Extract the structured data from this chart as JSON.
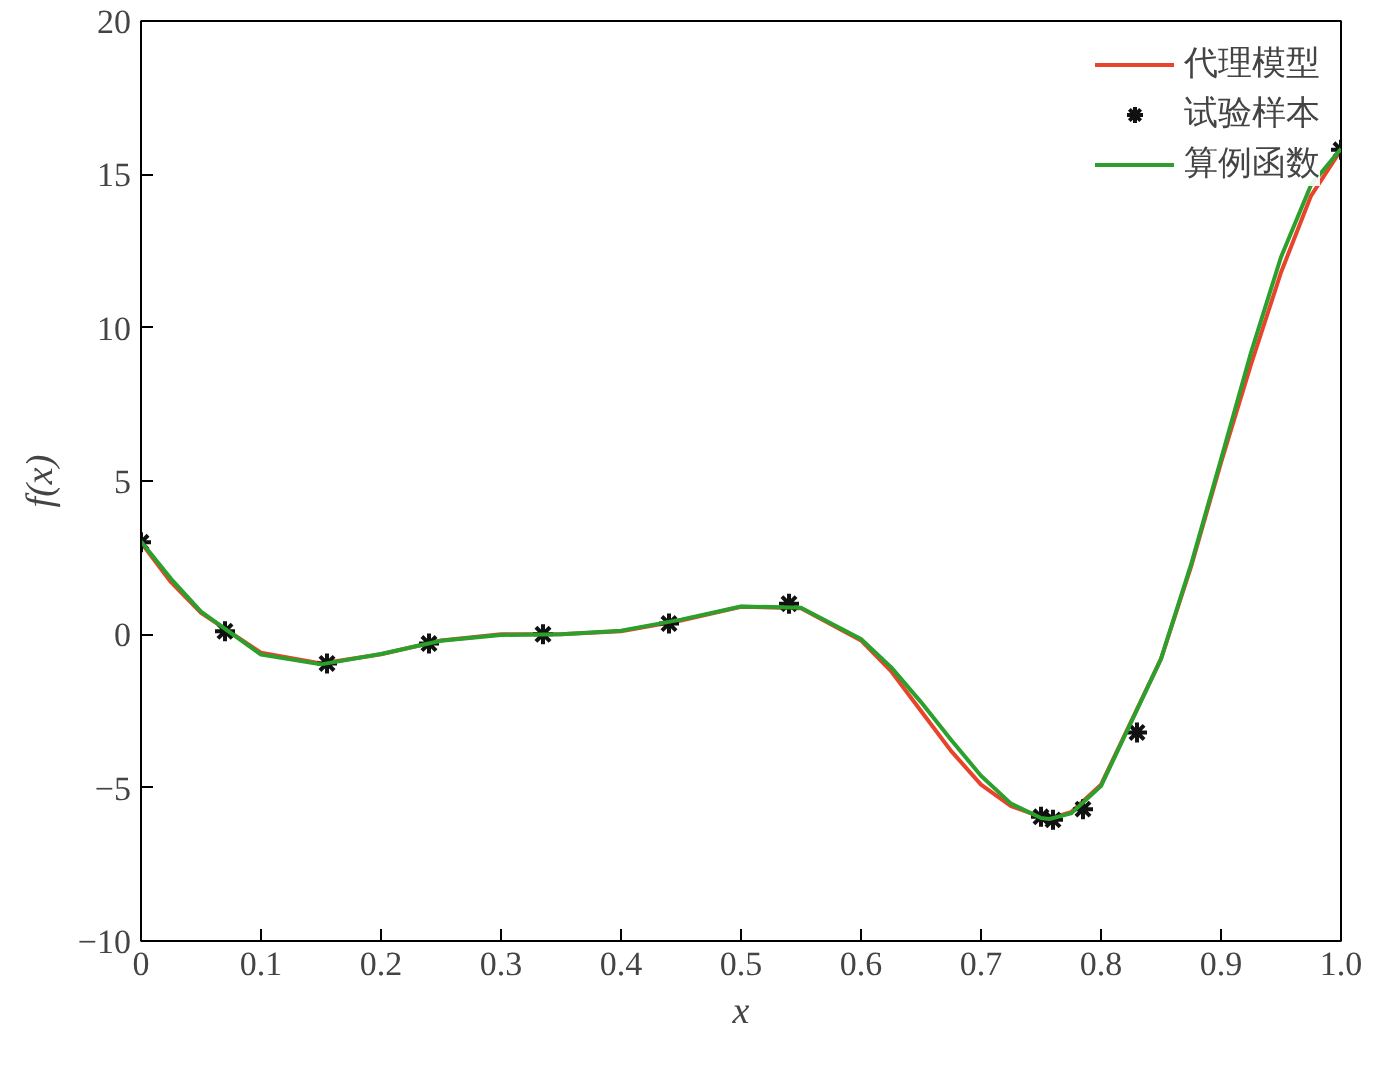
{
  "chart_data": {
    "type": "line",
    "xlabel": "x",
    "ylabel": "f(x)",
    "xlim": [
      0,
      1
    ],
    "ylim": [
      -10,
      20
    ],
    "xticks": [
      0,
      0.1,
      0.2,
      0.3,
      0.4,
      0.5,
      0.6,
      0.7,
      0.8,
      0.9,
      {
        "value": 1,
        "label": "1.0"
      }
    ],
    "yticks": [
      -10,
      -5,
      0,
      5,
      10,
      15,
      20
    ],
    "grid": false,
    "legend": "top right",
    "series": [
      {
        "name": "代理模型",
        "color": "#e8432b",
        "line_style": "solid",
        "x": [
          0,
          0.025,
          0.05,
          0.1,
          0.15,
          0.2,
          0.25,
          0.3,
          0.35,
          0.4,
          0.45,
          0.5,
          0.55,
          0.6,
          0.625,
          0.65,
          0.675,
          0.7,
          0.725,
          0.75,
          0.757,
          0.775,
          0.8,
          0.85,
          0.875,
          0.9,
          0.925,
          0.95,
          0.975,
          1.0
        ],
        "values": [
          3.0,
          1.7,
          0.7,
          -0.6,
          -0.95,
          -0.65,
          -0.2,
          0.0,
          0.0,
          0.1,
          0.45,
          0.9,
          0.85,
          -0.2,
          -1.2,
          -2.5,
          -3.8,
          -4.9,
          -5.6,
          -5.95,
          -6.0,
          -5.8,
          -4.9,
          -0.8,
          2.2,
          5.6,
          8.8,
          11.8,
          14.3,
          15.8
        ]
      },
      {
        "name": "试验样本",
        "type": "scatter",
        "color": "#111111",
        "marker": "cross",
        "x": [
          0,
          0.07,
          0.155,
          0.24,
          0.335,
          0.44,
          0.54,
          0.75,
          0.76,
          0.785,
          0.83,
          1.0
        ],
        "values": [
          3.0,
          0.1,
          -0.95,
          -0.3,
          0.0,
          0.35,
          1.0,
          -5.95,
          -6.05,
          -5.7,
          -3.2,
          15.8
        ]
      },
      {
        "name": "算例函数",
        "color": "#2ca02c",
        "line_style": "solid",
        "x": [
          0,
          0.025,
          0.05,
          0.1,
          0.15,
          0.2,
          0.25,
          0.3,
          0.35,
          0.4,
          0.45,
          0.5,
          0.55,
          0.6,
          0.625,
          0.65,
          0.675,
          0.7,
          0.725,
          0.75,
          0.757,
          0.775,
          0.8,
          0.85,
          0.875,
          0.9,
          0.925,
          0.95,
          0.975,
          1.0
        ],
        "values": [
          3.03,
          1.81,
          0.74,
          -0.66,
          -0.98,
          -0.64,
          -0.21,
          -0.02,
          0.0,
          0.12,
          0.48,
          0.91,
          0.87,
          -0.15,
          -1.07,
          -2.21,
          -3.44,
          -4.61,
          -5.52,
          -5.99,
          -6.02,
          -5.84,
          -4.95,
          -0.8,
          2.27,
          5.71,
          9.19,
          12.3,
          14.65,
          15.83
        ]
      }
    ]
  }
}
